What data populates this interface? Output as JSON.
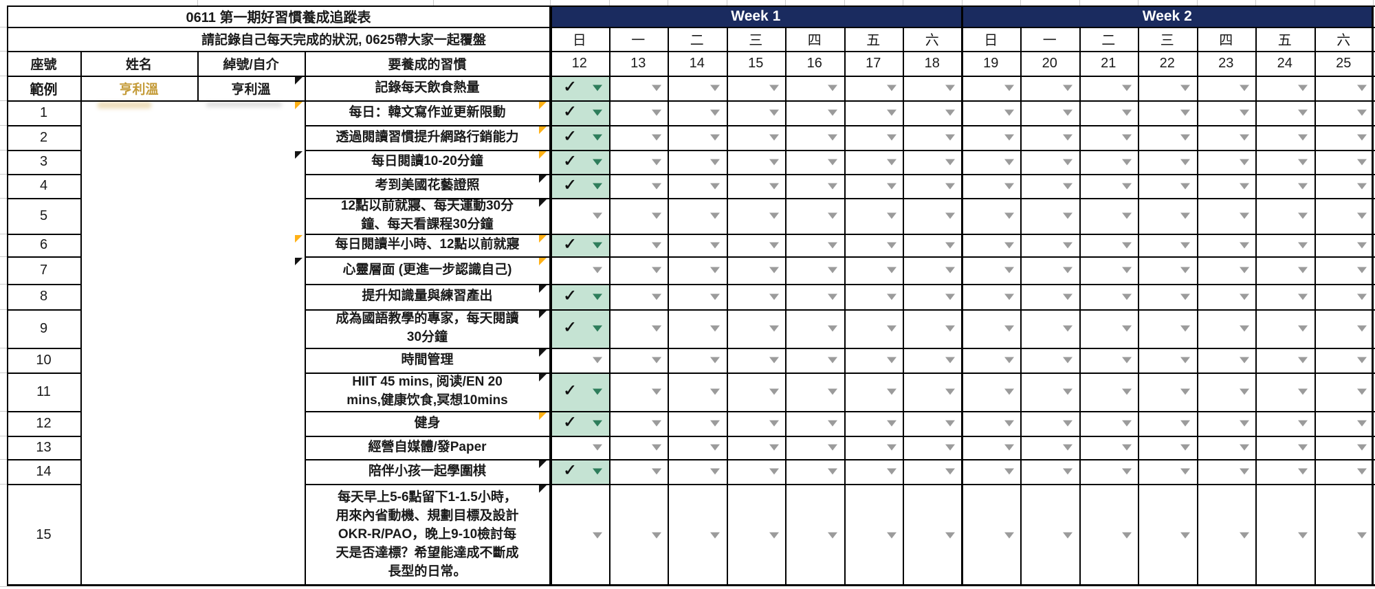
{
  "title": "0611 第一期好習慣養成追蹤表",
  "subtitle": "請記錄自己每天完成的狀況, 0625帶大家一起覆盤",
  "columns": {
    "seat": "座號",
    "name": "姓名",
    "nickname": "綽號/自介",
    "habit": "要養成的習慣"
  },
  "weeks": [
    {
      "label": "Week 1",
      "days": [
        "日",
        "一",
        "二",
        "三",
        "四",
        "五",
        "六"
      ],
      "dates": [
        "12",
        "13",
        "14",
        "15",
        "16",
        "17",
        "18"
      ]
    },
    {
      "label": "Week 2",
      "days": [
        "日",
        "一",
        "二",
        "三",
        "四",
        "五",
        "六"
      ],
      "dates": [
        "19",
        "20",
        "21",
        "22",
        "23",
        "24",
        "25"
      ]
    }
  ],
  "rows": [
    {
      "seat": "範例",
      "name": "亨利溫",
      "nickname": "亨利溫",
      "habit": "記錄每天飲食熱量",
      "checked_dates": [
        "12"
      ],
      "note_nick": "black",
      "note_habit": null
    },
    {
      "seat": "1",
      "name": "",
      "nickname": "",
      "habit": "每日：韓文寫作並更新限動",
      "checked_dates": [
        "12"
      ],
      "note_nick": "orange",
      "note_habit": "orange"
    },
    {
      "seat": "2",
      "name": "",
      "nickname": "",
      "habit": "透過閱讀習慣提升網路行銷能力",
      "checked_dates": [
        "12"
      ],
      "note_nick": null,
      "note_habit": "orange"
    },
    {
      "seat": "3",
      "name": "",
      "nickname": "",
      "habit": "每日閱讀10-20分鐘",
      "checked_dates": [
        "12"
      ],
      "note_nick": "black",
      "note_habit": "orange"
    },
    {
      "seat": "4",
      "name": "",
      "nickname": "",
      "habit": "考到美國花藝證照",
      "checked_dates": [
        "12"
      ],
      "note_nick": null,
      "note_habit": "black"
    },
    {
      "seat": "5",
      "name": "",
      "nickname": "",
      "habit": "12點以前就寢、每天運動30分\n鐘、每天看課程30分鐘",
      "checked_dates": [],
      "note_nick": null,
      "note_habit": "black"
    },
    {
      "seat": "6",
      "name": "",
      "nickname": "",
      "habit": "每日閱讀半小時、12點以前就寢",
      "checked_dates": [
        "12"
      ],
      "note_nick": "orange",
      "note_habit": "orange"
    },
    {
      "seat": "7",
      "name": "",
      "nickname": "",
      "habit": "心靈層面 (更進一步認識自己)",
      "checked_dates": [],
      "note_nick": "black",
      "note_habit": "orange"
    },
    {
      "seat": "8",
      "name": "",
      "nickname": "",
      "habit": "提升知識量與練習產出",
      "checked_dates": [
        "12"
      ],
      "note_nick": null,
      "note_habit": "black"
    },
    {
      "seat": "9",
      "name": "",
      "nickname": "",
      "habit": "成為國語教學的專家，每天閱讀\n30分鐘",
      "checked_dates": [
        "12"
      ],
      "note_nick": null,
      "note_habit": "black"
    },
    {
      "seat": "10",
      "name": "",
      "nickname": "",
      "habit": "時間管理",
      "checked_dates": [],
      "note_nick": null,
      "note_habit": "black"
    },
    {
      "seat": "11",
      "name": "",
      "nickname": "",
      "habit": "HIIT 45 mins, 阅读/EN 20\nmins,健康饮食,冥想10mins",
      "checked_dates": [
        "12"
      ],
      "note_nick": null,
      "note_habit": "black"
    },
    {
      "seat": "12",
      "name": "",
      "nickname": "",
      "habit": "健身",
      "checked_dates": [
        "12"
      ],
      "note_nick": null,
      "note_habit": "orange"
    },
    {
      "seat": "13",
      "name": "",
      "nickname": "",
      "habit": "經營自媒體/發Paper",
      "checked_dates": [],
      "note_nick": null,
      "note_habit": null
    },
    {
      "seat": "14",
      "name": "",
      "nickname": "",
      "habit": "陪伴小孩一起學圍棋",
      "checked_dates": [
        "12"
      ],
      "note_nick": null,
      "note_habit": "black"
    },
    {
      "seat": "15",
      "name": "",
      "nickname": "",
      "habit": "每天早上5-6點留下1-1.5小時，\n用來內省動機、規劃目標及設計\nOKR-R/PAO，晚上9-10檢討每\n天是否達標？希望能達成不斷成\n長型的日常。",
      "checked_dates": [],
      "note_nick": null,
      "note_habit": "black"
    }
  ],
  "icons": {
    "checkmark": "✓",
    "dropdown": "dropdown-arrow"
  },
  "colors": {
    "week_bar": "#1a2b5f",
    "checked_bg": "#c5e3d3",
    "checked_arrow": "#2e7d5b",
    "unchecked_arrow": "#9b9b9b",
    "name_gold": "#c49b38",
    "note_orange": "#ffb117",
    "note_black": "#141414",
    "grid": "#000000"
  }
}
